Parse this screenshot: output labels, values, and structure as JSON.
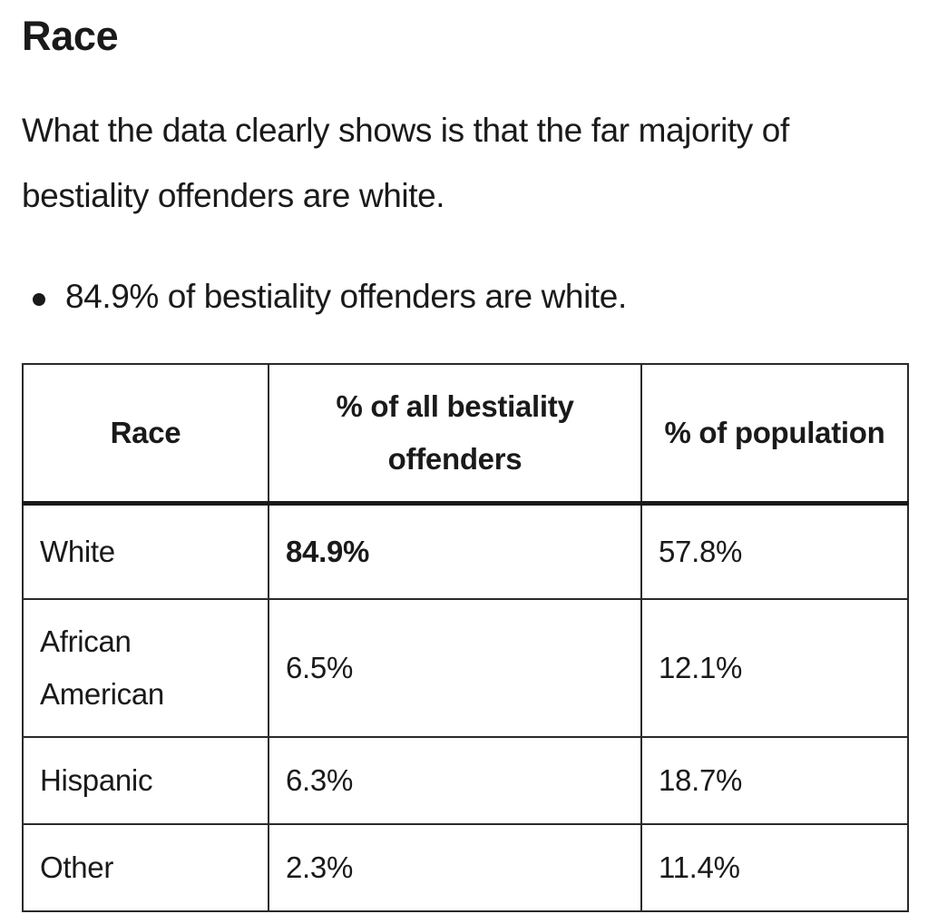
{
  "section": {
    "heading": "Race",
    "intro": "What the data clearly shows is that the far majority of bestiality offenders are white.",
    "bullets": [
      "84.9% of bestiality offenders are white."
    ]
  },
  "table": {
    "headers": [
      "Race",
      "% of all bestiality offenders",
      "% of population"
    ],
    "rows": [
      {
        "race": "White",
        "offenders": "84.9%",
        "population": "57.8%",
        "emphasized": true
      },
      {
        "race": "African American",
        "offenders": "6.5%",
        "population": "12.1%"
      },
      {
        "race": "Hispanic",
        "offenders": "6.3%",
        "population": "18.7%"
      },
      {
        "race": "Other",
        "offenders": "2.3%",
        "population": "11.4%"
      }
    ]
  }
}
